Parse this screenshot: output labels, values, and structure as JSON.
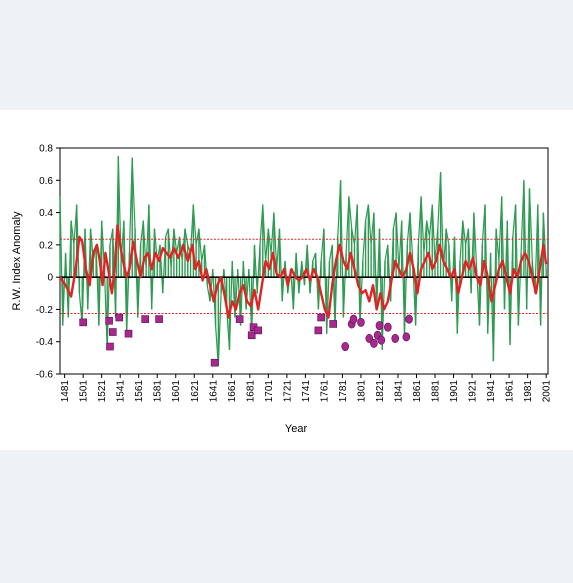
{
  "chart_data": {
    "type": "line",
    "title": "",
    "xlabel": "Year",
    "ylabel": "R.W. Index Anomaly",
    "xlim": [
      1476,
      2003
    ],
    "ylim": [
      -0.6,
      0.8
    ],
    "x_ticks": [
      1481,
      1501,
      1521,
      1541,
      1561,
      1581,
      1601,
      1621,
      1641,
      1661,
      1681,
      1701,
      1721,
      1741,
      1761,
      1781,
      1801,
      1821,
      1841,
      1861,
      1881,
      1901,
      1921,
      1941,
      1961,
      1981,
      2001
    ],
    "x_tick_labels": [
      "1481",
      "1501",
      "1521",
      "1541",
      "1561",
      "1581",
      "1601",
      "1621",
      "1641",
      "1661",
      "1681",
      "1701",
      "1721",
      "1741",
      "1761",
      "1781",
      "1801",
      "1821",
      "1841",
      "1861",
      "1881",
      "1901",
      "1921",
      "1941",
      "1961",
      "1981",
      "2001"
    ],
    "y_ticks": [
      -0.6,
      -0.4,
      -0.2,
      0,
      0.2,
      0.4,
      0.6,
      0.8
    ],
    "y_tick_labels": [
      "-0.6",
      "-0.4",
      "-0.2",
      "0",
      "0.2",
      "0.4",
      "0.6",
      "0.8"
    ],
    "thresholds": [
      0.235,
      -0.225
    ],
    "colors": {
      "annual": "#2e9a52",
      "smooth": "#e02424",
      "threshold": "#e02424",
      "marker": "#a8288f",
      "zero": "#000000"
    },
    "annual_anchors": [
      [
        1476,
        0.5
      ],
      [
        1479,
        -0.3
      ],
      [
        1482,
        0.15
      ],
      [
        1485,
        -0.25
      ],
      [
        1488,
        0.35
      ],
      [
        1491,
        0.2
      ],
      [
        1494,
        0.45
      ],
      [
        1497,
        -0.1
      ],
      [
        1500,
        -0.3
      ],
      [
        1503,
        0.3
      ],
      [
        1506,
        -0.2
      ],
      [
        1509,
        0.3
      ],
      [
        1512,
        0.1
      ],
      [
        1515,
        0.2
      ],
      [
        1518,
        -0.3
      ],
      [
        1521,
        0.35
      ],
      [
        1524,
        0.05
      ],
      [
        1527,
        -0.45
      ],
      [
        1530,
        0.2
      ],
      [
        1533,
        0.3
      ],
      [
        1536,
        -0.25
      ],
      [
        1539,
        0.75
      ],
      [
        1542,
        0.1
      ],
      [
        1545,
        0.35
      ],
      [
        1548,
        -0.35
      ],
      [
        1551,
        0.15
      ],
      [
        1554,
        0.74
      ],
      [
        1557,
        0.3
      ],
      [
        1560,
        -0.25
      ],
      [
        1563,
        0.2
      ],
      [
        1566,
        0.35
      ],
      [
        1569,
        0.05
      ],
      [
        1572,
        0.45
      ],
      [
        1575,
        -0.2
      ],
      [
        1578,
        0.3
      ],
      [
        1581,
        0.1
      ],
      [
        1584,
        0.2
      ],
      [
        1587,
        -0.1
      ],
      [
        1590,
        0.25
      ],
      [
        1593,
        0.3
      ],
      [
        1596,
        0.05
      ],
      [
        1599,
        0.3
      ],
      [
        1602,
        0.15
      ],
      [
        1605,
        0.25
      ],
      [
        1608,
        0.1
      ],
      [
        1611,
        0.3
      ],
      [
        1614,
        0.2
      ],
      [
        1617,
        0.15
      ],
      [
        1620,
        0.45
      ],
      [
        1623,
        0.2
      ],
      [
        1626,
        0.3
      ],
      [
        1629,
        0.1
      ],
      [
        1632,
        0.2
      ],
      [
        1635,
        -0.05
      ],
      [
        1638,
        -0.15
      ],
      [
        1641,
        0.05
      ],
      [
        1644,
        -0.3
      ],
      [
        1647,
        -0.55
      ],
      [
        1650,
        -0.1
      ],
      [
        1653,
        0.05
      ],
      [
        1656,
        -0.2
      ],
      [
        1659,
        -0.45
      ],
      [
        1662,
        0.1
      ],
      [
        1665,
        -0.25
      ],
      [
        1668,
        0.05
      ],
      [
        1671,
        -0.3
      ],
      [
        1674,
        0.1
      ],
      [
        1677,
        -0.2
      ],
      [
        1680,
        0.05
      ],
      [
        1683,
        -0.35
      ],
      [
        1686,
        0.2
      ],
      [
        1689,
        -0.1
      ],
      [
        1692,
        0.2
      ],
      [
        1695,
        0.45
      ],
      [
        1698,
        0.1
      ],
      [
        1701,
        0.3
      ],
      [
        1704,
        0.15
      ],
      [
        1707,
        0.4
      ],
      [
        1710,
        0.05
      ],
      [
        1713,
        0.3
      ],
      [
        1716,
        -0.15
      ],
      [
        1719,
        0.1
      ],
      [
        1722,
        -0.1
      ],
      [
        1725,
        0.05
      ],
      [
        1728,
        -0.2
      ],
      [
        1731,
        0.15
      ],
      [
        1734,
        -0.1
      ],
      [
        1737,
        0.1
      ],
      [
        1740,
        -0.05
      ],
      [
        1743,
        0.2
      ],
      [
        1746,
        -0.1
      ],
      [
        1749,
        0.1
      ],
      [
        1752,
        0.15
      ],
      [
        1755,
        -0.2
      ],
      [
        1758,
        0.1
      ],
      [
        1761,
        0.3
      ],
      [
        1764,
        -0.35
      ],
      [
        1767,
        0.1
      ],
      [
        1770,
        0.2
      ],
      [
        1773,
        -0.3
      ],
      [
        1776,
        0.25
      ],
      [
        1779,
        0.6
      ],
      [
        1782,
        -0.25
      ],
      [
        1785,
        0.15
      ],
      [
        1788,
        0.5
      ],
      [
        1791,
        0.3
      ],
      [
        1794,
        0.2
      ],
      [
        1797,
        0.45
      ],
      [
        1800,
        -0.3
      ],
      [
        1803,
        0.1
      ],
      [
        1806,
        0.35
      ],
      [
        1809,
        0.45
      ],
      [
        1812,
        0.2
      ],
      [
        1815,
        0.4
      ],
      [
        1818,
        -0.2
      ],
      [
        1821,
        0.3
      ],
      [
        1824,
        -0.45
      ],
      [
        1827,
        0.1
      ],
      [
        1830,
        0.2
      ],
      [
        1833,
        -0.15
      ],
      [
        1836,
        0.3
      ],
      [
        1839,
        0.4
      ],
      [
        1842,
        0.05
      ],
      [
        1845,
        0.35
      ],
      [
        1848,
        -0.35
      ],
      [
        1851,
        0.2
      ],
      [
        1854,
        0.4
      ],
      [
        1857,
        0.1
      ],
      [
        1860,
        -0.3
      ],
      [
        1863,
        0.2
      ],
      [
        1866,
        0.5
      ],
      [
        1869,
        0.15
      ],
      [
        1872,
        0.35
      ],
      [
        1875,
        0.25
      ],
      [
        1878,
        0.45
      ],
      [
        1881,
        0.1
      ],
      [
        1884,
        0.3
      ],
      [
        1887,
        0.65
      ],
      [
        1890,
        0.05
      ],
      [
        1893,
        0.3
      ],
      [
        1896,
        0.2
      ],
      [
        1899,
        -0.15
      ],
      [
        1902,
        0.25
      ],
      [
        1905,
        -0.35
      ],
      [
        1908,
        0.1
      ],
      [
        1911,
        0.35
      ],
      [
        1914,
        0.2
      ],
      [
        1917,
        0.3
      ],
      [
        1920,
        -0.1
      ],
      [
        1923,
        0.4
      ],
      [
        1926,
        0.05
      ],
      [
        1929,
        -0.3
      ],
      [
        1932,
        0.2
      ],
      [
        1935,
        0.45
      ],
      [
        1938,
        -0.35
      ],
      [
        1941,
        0.15
      ],
      [
        1944,
        -0.52
      ],
      [
        1947,
        0.3
      ],
      [
        1950,
        0.1
      ],
      [
        1953,
        0.5
      ],
      [
        1956,
        -0.2
      ],
      [
        1959,
        0.35
      ],
      [
        1962,
        -0.42
      ],
      [
        1965,
        0.25
      ],
      [
        1968,
        0.45
      ],
      [
        1971,
        -0.3
      ],
      [
        1974,
        0.15
      ],
      [
        1977,
        0.6
      ],
      [
        1980,
        -0.2
      ],
      [
        1983,
        0.55
      ],
      [
        1986,
        0.1
      ],
      [
        1989,
        -0.1
      ],
      [
        1992,
        0.45
      ],
      [
        1995,
        -0.3
      ],
      [
        1998,
        0.4
      ],
      [
        2001,
        0.05
      ]
    ],
    "smooth_anchors": [
      [
        1476,
        0.0
      ],
      [
        1482,
        -0.05
      ],
      [
        1488,
        -0.12
      ],
      [
        1493,
        0.05
      ],
      [
        1497,
        0.25
      ],
      [
        1500,
        0.22
      ],
      [
        1504,
        0.05
      ],
      [
        1508,
        -0.05
      ],
      [
        1512,
        0.15
      ],
      [
        1516,
        0.2
      ],
      [
        1519,
        0.1
      ],
      [
        1522,
        -0.05
      ],
      [
        1525,
        0.15
      ],
      [
        1528,
        0.05
      ],
      [
        1532,
        -0.1
      ],
      [
        1535,
        0.05
      ],
      [
        1538,
        0.32
      ],
      [
        1541,
        0.2
      ],
      [
        1544,
        0.1
      ],
      [
        1548,
        0.0
      ],
      [
        1551,
        0.05
      ],
      [
        1555,
        0.22
      ],
      [
        1559,
        0.1
      ],
      [
        1563,
        0.0
      ],
      [
        1567,
        0.12
      ],
      [
        1571,
        0.15
      ],
      [
        1575,
        0.05
      ],
      [
        1579,
        0.15
      ],
      [
        1583,
        0.1
      ],
      [
        1587,
        0.18
      ],
      [
        1591,
        0.15
      ],
      [
        1595,
        0.12
      ],
      [
        1599,
        0.18
      ],
      [
        1604,
        0.12
      ],
      [
        1609,
        0.2
      ],
      [
        1614,
        0.1
      ],
      [
        1619,
        0.2
      ],
      [
        1622,
        0.05
      ],
      [
        1626,
        0.1
      ],
      [
        1630,
        -0.02
      ],
      [
        1634,
        0.05
      ],
      [
        1638,
        -0.05
      ],
      [
        1642,
        -0.15
      ],
      [
        1646,
        -0.05
      ],
      [
        1650,
        0.0
      ],
      [
        1654,
        -0.12
      ],
      [
        1658,
        -0.25
      ],
      [
        1662,
        -0.15
      ],
      [
        1666,
        -0.2
      ],
      [
        1670,
        -0.1
      ],
      [
        1674,
        -0.05
      ],
      [
        1678,
        -0.15
      ],
      [
        1682,
        -0.18
      ],
      [
        1686,
        -0.08
      ],
      [
        1690,
        -0.2
      ],
      [
        1694,
        -0.05
      ],
      [
        1698,
        0.1
      ],
      [
        1702,
        0.05
      ],
      [
        1706,
        0.15
      ],
      [
        1710,
        0.02
      ],
      [
        1714,
        0.0
      ],
      [
        1718,
        0.05
      ],
      [
        1722,
        -0.05
      ],
      [
        1726,
        0.05
      ],
      [
        1730,
        0.0
      ],
      [
        1734,
        -0.02
      ],
      [
        1738,
        0.0
      ],
      [
        1742,
        0.05
      ],
      [
        1746,
        -0.02
      ],
      [
        1750,
        0.05
      ],
      [
        1754,
        0.0
      ],
      [
        1758,
        -0.1
      ],
      [
        1762,
        -0.2
      ],
      [
        1766,
        -0.25
      ],
      [
        1770,
        -0.05
      ],
      [
        1774,
        0.1
      ],
      [
        1778,
        0.2
      ],
      [
        1782,
        0.1
      ],
      [
        1786,
        0.05
      ],
      [
        1790,
        0.15
      ],
      [
        1794,
        0.05
      ],
      [
        1798,
        -0.05
      ],
      [
        1802,
        -0.1
      ],
      [
        1806,
        -0.08
      ],
      [
        1810,
        -0.15
      ],
      [
        1814,
        -0.05
      ],
      [
        1818,
        -0.2
      ],
      [
        1822,
        -0.1
      ],
      [
        1826,
        -0.2
      ],
      [
        1830,
        -0.15
      ],
      [
        1834,
        -0.02
      ],
      [
        1838,
        0.1
      ],
      [
        1842,
        0.05
      ],
      [
        1846,
        0.0
      ],
      [
        1850,
        0.05
      ],
      [
        1854,
        0.15
      ],
      [
        1858,
        0.05
      ],
      [
        1862,
        -0.1
      ],
      [
        1866,
        0.05
      ],
      [
        1870,
        0.1
      ],
      [
        1874,
        0.15
      ],
      [
        1878,
        0.05
      ],
      [
        1882,
        0.1
      ],
      [
        1886,
        0.2
      ],
      [
        1890,
        0.1
      ],
      [
        1894,
        0.05
      ],
      [
        1898,
        0.0
      ],
      [
        1902,
        0.05
      ],
      [
        1906,
        -0.1
      ],
      [
        1910,
        0.0
      ],
      [
        1914,
        0.1
      ],
      [
        1918,
        0.05
      ],
      [
        1922,
        0.12
      ],
      [
        1926,
        0.0
      ],
      [
        1930,
        -0.05
      ],
      [
        1934,
        0.1
      ],
      [
        1938,
        0.0
      ],
      [
        1942,
        -0.15
      ],
      [
        1946,
        -0.05
      ],
      [
        1950,
        0.05
      ],
      [
        1954,
        0.1
      ],
      [
        1958,
        0.0
      ],
      [
        1962,
        -0.1
      ],
      [
        1966,
        0.05
      ],
      [
        1970,
        0.0
      ],
      [
        1974,
        0.1
      ],
      [
        1978,
        0.15
      ],
      [
        1982,
        0.1
      ],
      [
        1986,
        0.0
      ],
      [
        1990,
        -0.1
      ],
      [
        1994,
        0.05
      ],
      [
        1998,
        0.2
      ],
      [
        2001,
        0.08
      ]
    ],
    "square_markers": [
      [
        1501,
        -0.28
      ],
      [
        1529,
        -0.27
      ],
      [
        1530,
        -0.43
      ],
      [
        1533,
        -0.34
      ],
      [
        1540,
        -0.25
      ],
      [
        1550,
        -0.35
      ],
      [
        1568,
        -0.26
      ],
      [
        1583,
        -0.26
      ],
      [
        1643,
        -0.53
      ],
      [
        1670,
        -0.26
      ],
      [
        1683,
        -0.36
      ],
      [
        1685,
        -0.31
      ],
      [
        1690,
        -0.33
      ],
      [
        1755,
        -0.33
      ],
      [
        1758,
        -0.25
      ],
      [
        1771,
        -0.29
      ]
    ],
    "circle_markers": [
      [
        1784,
        -0.43
      ],
      [
        1791,
        -0.29
      ],
      [
        1793,
        -0.26
      ],
      [
        1801,
        -0.28
      ],
      [
        1810,
        -0.38
      ],
      [
        1815,
        -0.41
      ],
      [
        1819,
        -0.36
      ],
      [
        1821,
        -0.3
      ],
      [
        1823,
        -0.39
      ],
      [
        1830,
        -0.31
      ],
      [
        1838,
        -0.38
      ],
      [
        1850,
        -0.37
      ],
      [
        1853,
        -0.26
      ]
    ]
  }
}
